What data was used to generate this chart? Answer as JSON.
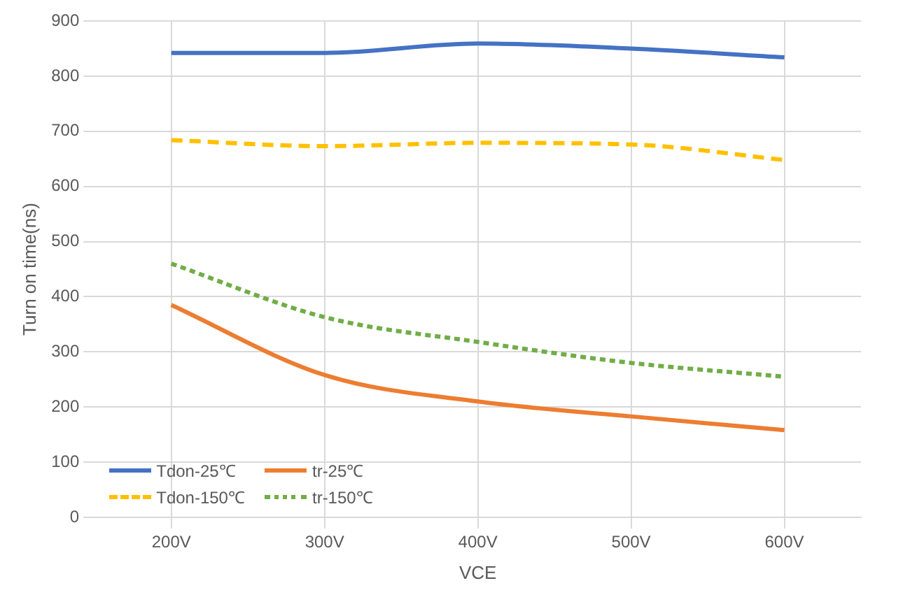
{
  "chart_data": {
    "type": "line",
    "xlabel": "VCE",
    "ylabel": "Turn on time(ns)",
    "categories": [
      "200V",
      "300V",
      "400V",
      "500V",
      "600V"
    ],
    "series": [
      {
        "name": "Tdon-25℃",
        "color": "#4472c4",
        "line_style": "solid",
        "values": [
          842,
          842,
          859,
          850,
          834
        ]
      },
      {
        "name": "tr-25℃",
        "color": "#ed7d31",
        "line_style": "solid",
        "values": [
          385,
          258,
          210,
          183,
          158
        ]
      },
      {
        "name": "Tdon-150℃",
        "color": "#ffc000",
        "line_style": "dashed",
        "values": [
          684,
          673,
          679,
          676,
          648
        ]
      },
      {
        "name": "tr-150℃",
        "color": "#70ad47",
        "line_style": "dotted",
        "values": [
          460,
          363,
          318,
          280,
          255
        ]
      }
    ],
    "ylim": [
      0,
      900
    ],
    "yticks": [
      0,
      100,
      200,
      300,
      400,
      500,
      600,
      700,
      800,
      900
    ],
    "grid": true,
    "legend": "bottom left",
    "marker": "none"
  }
}
